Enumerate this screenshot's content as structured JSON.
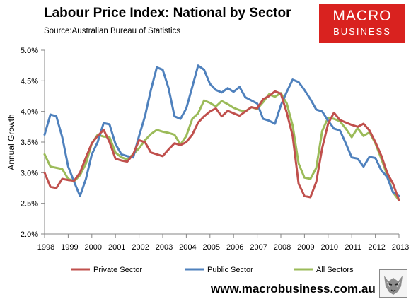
{
  "header": {
    "title": "Labour Price Index: National by Sector",
    "source": "Source:Australian Bureau of Statistics"
  },
  "logo": {
    "line1": "MACRO",
    "line2": "BUSINESS",
    "color": "#d9221f"
  },
  "footer": {
    "website": "www.macrobusiness.com.au"
  },
  "chart_data": {
    "type": "line",
    "title": "Labour Price Index: National by Sector",
    "xlabel": "",
    "ylabel": "Annual Growth",
    "xlim": [
      1998,
      2013
    ],
    "ylim": [
      2.0,
      5.0
    ],
    "x_ticks": [
      "1998",
      "1999",
      "2000",
      "2001",
      "2002",
      "2003",
      "2004",
      "2005",
      "2006",
      "2007",
      "2008",
      "2009",
      "2010",
      "2011",
      "2012",
      "2013"
    ],
    "y_ticks": [
      "2.0%",
      "2.5%",
      "3.0%",
      "3.5%",
      "4.0%",
      "4.5%",
      "5.0%"
    ],
    "grid": false,
    "legend_position": "bottom",
    "x": [
      1998.0,
      1998.25,
      1998.5,
      1998.75,
      1999.0,
      1999.25,
      1999.5,
      1999.75,
      2000.0,
      2000.25,
      2000.5,
      2000.75,
      2001.0,
      2001.25,
      2001.5,
      2001.75,
      2002.0,
      2002.25,
      2002.5,
      2002.75,
      2003.0,
      2003.25,
      2003.5,
      2003.75,
      2004.0,
      2004.25,
      2004.5,
      2004.75,
      2005.0,
      2005.25,
      2005.5,
      2005.75,
      2006.0,
      2006.25,
      2006.5,
      2006.75,
      2007.0,
      2007.25,
      2007.5,
      2007.75,
      2008.0,
      2008.25,
      2008.5,
      2008.75,
      2009.0,
      2009.25,
      2009.5,
      2009.75,
      2010.0,
      2010.25,
      2010.5,
      2010.75,
      2011.0,
      2011.25,
      2011.5,
      2011.75,
      2012.0,
      2012.25,
      2012.5,
      2012.75,
      2013.0
    ],
    "series": [
      {
        "name": "Private Sector",
        "color": "#c0504d",
        "values": [
          3.0,
          2.77,
          2.75,
          2.9,
          2.88,
          2.87,
          3.0,
          3.25,
          3.48,
          3.6,
          3.7,
          3.5,
          3.23,
          3.2,
          3.18,
          3.3,
          3.53,
          3.5,
          3.33,
          3.3,
          3.27,
          3.38,
          3.48,
          3.45,
          3.5,
          3.62,
          3.82,
          3.92,
          4.0,
          4.05,
          3.92,
          4.01,
          3.97,
          3.93,
          4.0,
          4.07,
          4.05,
          4.2,
          4.25,
          4.33,
          4.29,
          3.98,
          3.6,
          2.82,
          2.62,
          2.6,
          2.85,
          3.4,
          3.8,
          3.98,
          3.86,
          3.82,
          3.78,
          3.75,
          3.8,
          3.69,
          3.5,
          3.28,
          3.0,
          2.82,
          2.55
        ]
      },
      {
        "name": "Public Sector",
        "color": "#4f81bd",
        "values": [
          3.62,
          3.95,
          3.92,
          3.58,
          3.1,
          2.85,
          2.62,
          2.9,
          3.3,
          3.5,
          3.81,
          3.79,
          3.47,
          3.3,
          3.27,
          3.25,
          3.6,
          3.92,
          4.35,
          4.72,
          4.68,
          4.38,
          3.92,
          3.88,
          4.05,
          4.4,
          4.75,
          4.68,
          4.45,
          4.35,
          4.31,
          4.38,
          4.32,
          4.4,
          4.23,
          4.18,
          4.13,
          3.88,
          3.85,
          3.8,
          4.1,
          4.32,
          4.52,
          4.48,
          4.35,
          4.2,
          4.03,
          4.0,
          3.85,
          3.72,
          3.69,
          3.48,
          3.25,
          3.23,
          3.1,
          3.26,
          3.24,
          3.04,
          2.93,
          2.68,
          2.62
        ]
      },
      {
        "name": "All Sectors",
        "color": "#9bbb59",
        "values": [
          3.3,
          3.1,
          3.08,
          3.06,
          2.9,
          2.86,
          2.96,
          3.15,
          3.48,
          3.62,
          3.59,
          3.58,
          3.33,
          3.25,
          3.22,
          3.3,
          3.4,
          3.53,
          3.63,
          3.7,
          3.67,
          3.65,
          3.62,
          3.46,
          3.6,
          3.88,
          3.97,
          4.18,
          4.14,
          4.08,
          4.17,
          4.12,
          4.06,
          4.02,
          4.0,
          4.07,
          4.04,
          4.15,
          4.28,
          4.24,
          4.3,
          4.13,
          3.77,
          3.15,
          2.92,
          2.9,
          3.08,
          3.68,
          3.9,
          3.88,
          3.84,
          3.72,
          3.58,
          3.73,
          3.6,
          3.66,
          3.48,
          3.23,
          2.96,
          2.68,
          2.55
        ]
      }
    ]
  }
}
